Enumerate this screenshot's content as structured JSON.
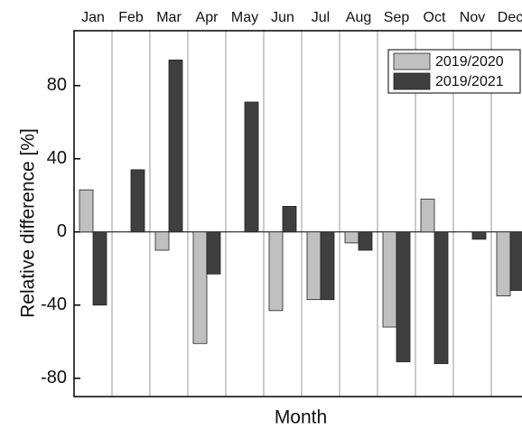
{
  "chart_data": {
    "type": "bar",
    "x_label": "Month",
    "y_label": "Relative difference [%]",
    "categories": [
      "Jan",
      "Feb",
      "Mar",
      "Apr",
      "May",
      "Jun",
      "Jul",
      "Aug",
      "Sep",
      "Oct",
      "Nov",
      "Dec"
    ],
    "series": [
      {
        "name": "2019/2020",
        "color": "#c0c0c0",
        "values": [
          23,
          null,
          -10,
          -61,
          null,
          -43,
          -37,
          -6,
          -52,
          18,
          null,
          -35
        ]
      },
      {
        "name": "2019/2021",
        "color": "#3f3f3f",
        "values": [
          -40,
          34,
          94,
          -23,
          71,
          14,
          -37,
          -10,
          -71,
          -72,
          -4,
          -32
        ]
      }
    ],
    "ylim": [
      -90,
      110
    ],
    "yticks": [
      -80,
      -40,
      0,
      40,
      80
    ],
    "legend": "upper right"
  }
}
